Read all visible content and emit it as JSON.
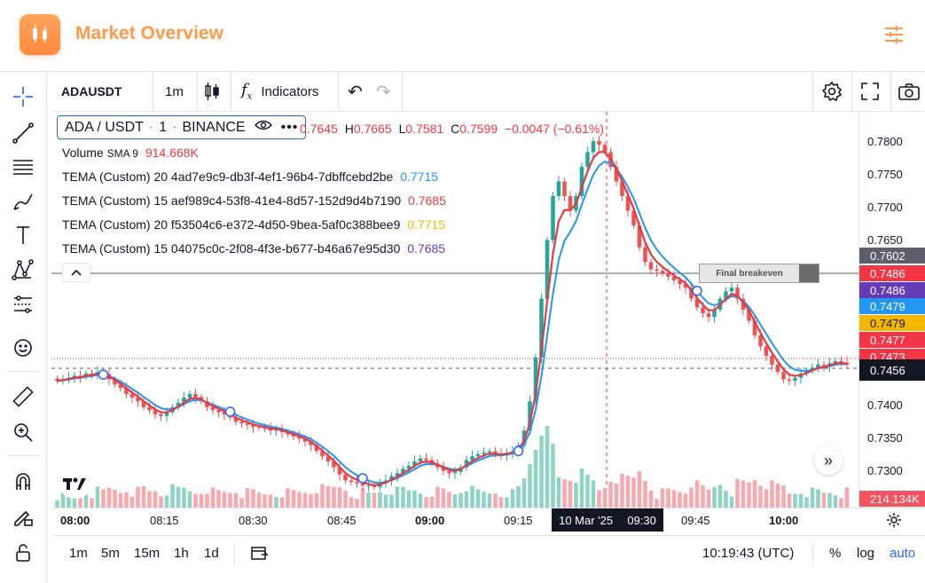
{
  "header": {
    "title": "Market Overview",
    "logo_icon": "candlestick-icon",
    "settings_icon": "sliders-icon",
    "accent": "#ff9a4a"
  },
  "toolbar": {
    "symbol": "ADAUSDT",
    "interval": "1m",
    "indicators_label": "Indicators"
  },
  "legend": {
    "pair": "ADA / USDT",
    "interval": "1",
    "exchange": "BINANCE",
    "open": "0.7645",
    "high": "0.7665",
    "low": "0.7581",
    "close": "0.7599",
    "change": "−0.0047 (−0.61%)",
    "volume_label": "Volume",
    "volume_sma": "SMA 9",
    "volume_value": "914.668K",
    "indicators": [
      {
        "name": "TEMA (Custom) 20 4ad7e9c9-db3f-4ef1-96b4-7dbffcebd2be",
        "value": "0.7715",
        "color": "#2196f3"
      },
      {
        "name": "TEMA (Custom) 15 aef989c4-53f8-41e4-8d57-152d9d4b7190",
        "value": "0.7685",
        "color": "#f23645"
      },
      {
        "name": "TEMA (Custom) 20 f53504c6-e372-4d50-9bea-5af0c388bee9",
        "value": "0.7715",
        "color": "#f5b800"
      },
      {
        "name": "TEMA (Custom) 15 04075c0c-2f08-4f3e-b677-b46a67e95d30",
        "value": "0.7685",
        "color": "#673ab7"
      }
    ]
  },
  "breakeven_label": "Final breakeven",
  "price_axis": {
    "ticks": [
      "0.7800",
      "0.7750",
      "0.7700",
      "0.7650",
      "0.7400",
      "0.7350",
      "0.7300"
    ],
    "tags": [
      {
        "value": "0.7602",
        "color": "#5d606b"
      },
      {
        "value": "0.7486",
        "color": "#f23645"
      },
      {
        "value": "0.7486",
        "color": "#673ab7"
      },
      {
        "value": "0.7479",
        "color": "#2196f3"
      },
      {
        "value": "0.7479",
        "color": "#f5b800"
      },
      {
        "value": "0.7477",
        "color": "#f23645"
      },
      {
        "value": "0.7473",
        "color": "#f23645"
      },
      {
        "value": "0.7456",
        "color": "#131722"
      }
    ],
    "volume_tag": "214.134K"
  },
  "time_axis": {
    "labels": [
      "08:00",
      "08:15",
      "08:30",
      "08:45",
      "09:00",
      "09:15",
      "09:45",
      "10:00"
    ],
    "crosshair_date": "10 Mar '25",
    "crosshair_time": "09:30"
  },
  "bottom_bar": {
    "ranges": [
      "1m",
      "5m",
      "15m",
      "1h",
      "1d"
    ],
    "clock": "10:19:43 (UTC)",
    "percent": "%",
    "log": "log",
    "auto": "auto",
    "auto_color": "#2962ff"
  },
  "chart_data": {
    "type": "candlestick",
    "title": "ADA / USDT · 1 · BINANCE",
    "ylim": [
      0.7275,
      0.7815
    ],
    "x_range": [
      "08:00",
      "10:20"
    ],
    "series": [
      {
        "name": "ADAUSDT",
        "ohlc_close": [
          0.7448,
          0.745,
          0.7452,
          0.7455,
          0.7453,
          0.7458,
          0.7456,
          0.746,
          0.7457,
          0.745,
          0.7443,
          0.7438,
          0.743,
          0.7425,
          0.742,
          0.7412,
          0.7408,
          0.7402,
          0.74,
          0.7405,
          0.7412,
          0.7418,
          0.7425,
          0.743,
          0.7426,
          0.742,
          0.7412,
          0.7408,
          0.7405,
          0.7402,
          0.7398,
          0.7392,
          0.739,
          0.7388,
          0.7385,
          0.7384,
          0.7383,
          0.738,
          0.7382,
          0.7378,
          0.7375,
          0.7372,
          0.7369,
          0.7365,
          0.736,
          0.7352,
          0.7345,
          0.7338,
          0.733,
          0.732,
          0.7312,
          0.731,
          0.7308,
          0.7305,
          0.7305,
          0.7303,
          0.7308,
          0.7312,
          0.7318,
          0.7322,
          0.7328,
          0.7332,
          0.7338,
          0.7342,
          0.734,
          0.7335,
          0.733,
          0.7325,
          0.7322,
          0.7324,
          0.733,
          0.734,
          0.7345,
          0.7348,
          0.735,
          0.7352,
          0.7348,
          0.7346,
          0.735,
          0.7352,
          0.736,
          0.738,
          0.742,
          0.748,
          0.756,
          0.764,
          0.77,
          0.772,
          0.77,
          0.768,
          0.77,
          0.774,
          0.776,
          0.7775,
          0.777,
          0.776,
          0.774,
          0.772,
          0.77,
          0.768,
          0.766,
          0.763,
          0.761,
          0.76,
          0.7598,
          0.7595,
          0.759,
          0.7585,
          0.758,
          0.7575,
          0.756,
          0.7548,
          0.754,
          0.7535,
          0.7545,
          0.756,
          0.757,
          0.7575,
          0.756,
          0.7545,
          0.753,
          0.751,
          0.7495,
          0.7482,
          0.747,
          0.746,
          0.745,
          0.7448,
          0.7452,
          0.7458,
          0.7462,
          0.7466,
          0.747,
          0.7468,
          0.7472,
          0.7475,
          0.7473,
          0.747
        ]
      },
      {
        "name": "Volume",
        "values": []
      }
    ]
  }
}
